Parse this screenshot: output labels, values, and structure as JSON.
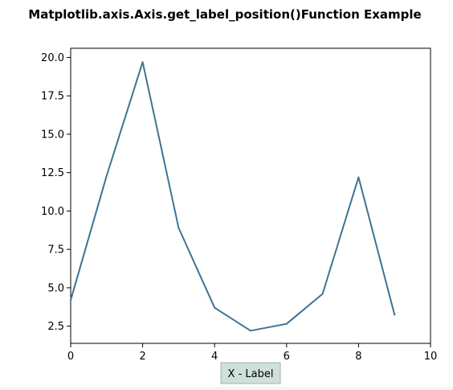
{
  "chart_data": {
    "type": "line",
    "title": "Matplotlib.axis.Axis.get_label_position()Function Example",
    "xlabel": "X - Label",
    "ylabel": "",
    "xlim": [
      0,
      10
    ],
    "ylim": [
      1.38,
      20.6
    ],
    "xticks": [
      0,
      2,
      4,
      6,
      8,
      10
    ],
    "yticks": [
      2.5,
      5.0,
      7.5,
      10.0,
      12.5,
      15.0,
      17.5,
      20.0
    ],
    "xtick_labels": [
      "0",
      "2",
      "4",
      "6",
      "8",
      "10"
    ],
    "ytick_labels": [
      "2.5",
      "5.0",
      "7.5",
      "10.0",
      "12.5",
      "15.0",
      "17.5",
      "20.0"
    ],
    "grid": false,
    "series": [
      {
        "x": [
          0,
          1,
          2,
          3,
          4,
          5,
          6,
          7,
          8,
          9
        ],
        "values": [
          4.2,
          12.3,
          19.7,
          8.9,
          3.7,
          2.2,
          2.65,
          4.6,
          12.2,
          3.25
        ]
      }
    ],
    "colors": {
      "line": "#3e7394",
      "xlabel_box_fill": "#cfe0d8",
      "xlabel_box_border": "#9db5aa"
    }
  }
}
